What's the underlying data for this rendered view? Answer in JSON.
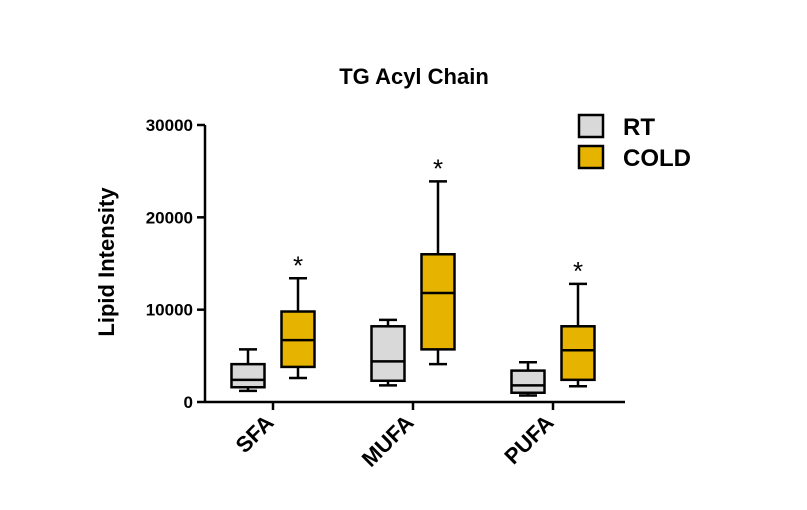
{
  "chart_data": {
    "type": "box",
    "title": "TG Acyl Chain",
    "ylabel": "Lipid Intensity",
    "xlabel": "",
    "ylim": [
      0,
      30000
    ],
    "yticks": [
      0,
      10000,
      20000,
      30000
    ],
    "categories": [
      "SFA",
      "MUFA",
      "PUFA"
    ],
    "legend_position": "top-right",
    "series": [
      {
        "name": "RT",
        "color": "#d9d9d9",
        "boxes": [
          {
            "min": 1200,
            "q1": 1600,
            "median": 2400,
            "q3": 4100,
            "max": 5700
          },
          {
            "min": 1800,
            "q1": 2300,
            "median": 4400,
            "q3": 8200,
            "max": 8900
          },
          {
            "min": 700,
            "q1": 1000,
            "median": 1800,
            "q3": 3400,
            "max": 4300
          }
        ]
      },
      {
        "name": "COLD",
        "color": "#e6b400",
        "boxes": [
          {
            "min": 2600,
            "q1": 3800,
            "median": 6700,
            "q3": 9800,
            "max": 13400
          },
          {
            "min": 4100,
            "q1": 5700,
            "median": 11800,
            "q3": 16000,
            "max": 23900
          },
          {
            "min": 1700,
            "q1": 2400,
            "median": 5600,
            "q3": 8200,
            "max": 12800
          }
        ]
      }
    ],
    "annotations": [
      {
        "category": "SFA",
        "series": "COLD",
        "text": "*"
      },
      {
        "category": "MUFA",
        "series": "COLD",
        "text": "*"
      },
      {
        "category": "PUFA",
        "series": "COLD",
        "text": "*"
      }
    ]
  }
}
